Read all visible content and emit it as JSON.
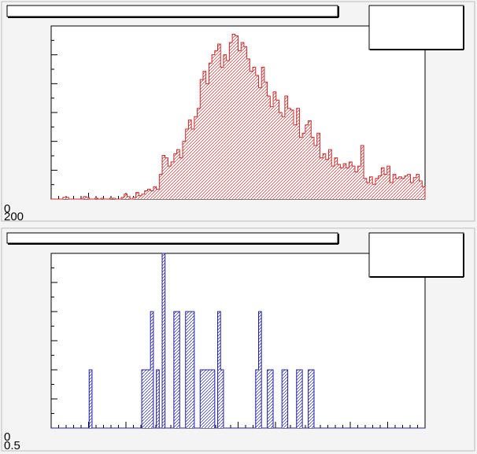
{
  "colors": {
    "canvas_bg": "#f4f4f4",
    "frame": "#000000",
    "top_series": "#d62728",
    "bottom_series": "#1f1fb4",
    "label_box": "#ffffff"
  },
  "chart_data": [
    {
      "type": "bar",
      "histogram": true,
      "fill": "hatched",
      "xlim": [
        0,
        100
      ],
      "ylim": [
        0,
        210
      ],
      "x_tick_labels": [],
      "y_tick_labels": [
        "0",
        "200"
      ],
      "title": "",
      "xlabel": "",
      "ylabel": "",
      "legend": "top-right",
      "grid": false,
      "values": [
        0,
        0,
        0,
        0,
        2,
        2,
        0,
        0,
        0,
        0,
        0,
        3,
        2,
        0,
        0,
        1,
        0,
        1,
        0,
        0,
        1,
        1,
        0,
        0,
        2,
        6,
        3,
        0,
        2,
        8,
        4,
        6,
        10,
        12,
        10,
        15,
        12,
        30,
        53,
        50,
        40,
        45,
        55,
        60,
        50,
        70,
        85,
        96,
        85,
        100,
        110,
        145,
        155,
        140,
        165,
        175,
        180,
        188,
        160,
        175,
        168,
        190,
        200,
        198,
        180,
        190,
        185,
        170,
        155,
        160,
        150,
        135,
        160,
        142,
        125,
        112,
        130,
        120,
        105,
        100,
        125,
        110,
        108,
        90,
        110,
        75,
        80,
        90,
        95,
        75,
        65,
        80,
        50,
        55,
        48,
        60,
        40,
        50,
        42,
        38,
        43,
        38,
        45,
        40,
        33,
        40,
        65,
        25,
        20,
        27,
        18,
        25,
        28,
        38,
        30,
        40,
        20,
        30,
        25,
        27,
        25,
        28,
        30,
        20,
        26,
        30,
        22,
        15
      ],
      "series": [
        {
          "name": "",
          "color": "#d62728"
        }
      ]
    },
    {
      "type": "bar",
      "histogram": true,
      "fill": "hatched",
      "xlim": [
        0,
        100
      ],
      "ylim": [
        0,
        12
      ],
      "x_tick_labels": [],
      "y_tick_labels": [
        "0",
        "0.5"
      ],
      "title": "",
      "xlabel": "",
      "ylabel": "",
      "legend": "top-right",
      "grid": false,
      "values": [
        0,
        0,
        0,
        0,
        0,
        0,
        0,
        0,
        0,
        0,
        0,
        0,
        0,
        4,
        0,
        0,
        0,
        0,
        0,
        0,
        0,
        0,
        0,
        0,
        0,
        0,
        0,
        0,
        0,
        0,
        0,
        4,
        4,
        4,
        8,
        0,
        4,
        0,
        12,
        0,
        0,
        0,
        8,
        8,
        0,
        0,
        8,
        8,
        8,
        0,
        0,
        4,
        4,
        4,
        4,
        4,
        0,
        8,
        4,
        0,
        0,
        0,
        0,
        0,
        0,
        0,
        0,
        0,
        0,
        0,
        4,
        8,
        0,
        0,
        4,
        4,
        0,
        0,
        0,
        4,
        4,
        0,
        0,
        0,
        4,
        4,
        0,
        0,
        4,
        4,
        0,
        0,
        0,
        0,
        0,
        0,
        0,
        0,
        0,
        0,
        0,
        0,
        0,
        0,
        0,
        0,
        0,
        0,
        0,
        0,
        0,
        0,
        0,
        0,
        0,
        0,
        0,
        0,
        0,
        0,
        0,
        0,
        0,
        0,
        0,
        0,
        0,
        0
      ],
      "series": [
        {
          "name": "",
          "color": "#1f1fb4"
        }
      ]
    }
  ]
}
